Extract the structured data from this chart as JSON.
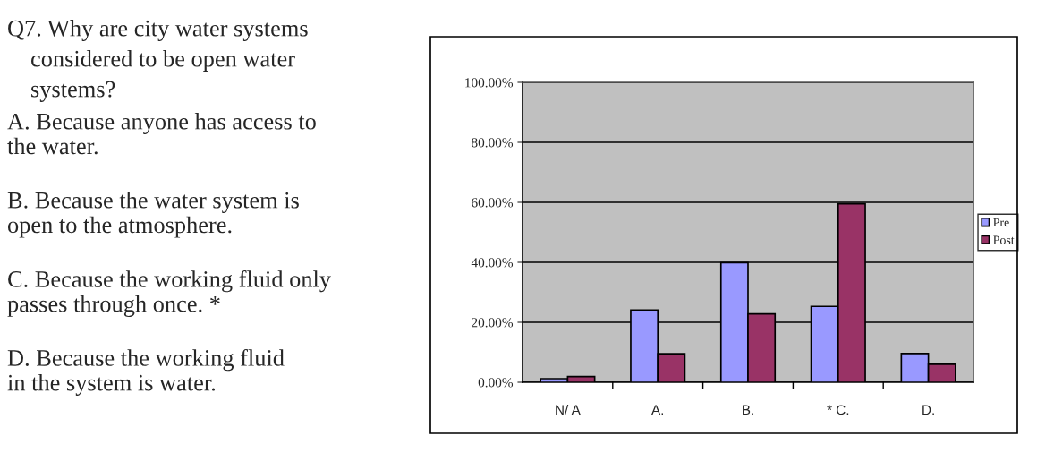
{
  "chart_data": {
    "type": "bar",
    "title": "Q7. Why are city water systems\nconsidered to be open water\nsystems?",
    "annotations": [
      "A. Because anyone has access to\nthe water.",
      "B. Because the water system is\nopen to the atmosphere.",
      "C. Because the working fluid only\npasses through once. *",
      "D. Because the working fluid\nin the system is water."
    ],
    "categories": [
      "N/ A",
      "A.",
      "B.",
      "* C.",
      "D."
    ],
    "series": [
      {
        "name": "Pre",
        "color": "#9999ff",
        "values": [
          1.2,
          24.1,
          39.9,
          25.3,
          9.6
        ]
      },
      {
        "name": "Post",
        "color": "#993366",
        "values": [
          1.9,
          9.5,
          22.8,
          59.5,
          6.0
        ]
      }
    ],
    "ylim": [
      0,
      100
    ],
    "yticks": [
      {
        "value": 0,
        "label": "0.00%"
      },
      {
        "value": 20,
        "label": "20.00%"
      },
      {
        "value": 40,
        "label": "40.00%"
      },
      {
        "value": 60,
        "label": "60.00%"
      },
      {
        "value": 80,
        "label": "80.00%"
      },
      {
        "value": 100,
        "label": "100.00%"
      }
    ],
    "grid": "y",
    "legend": "right"
  }
}
